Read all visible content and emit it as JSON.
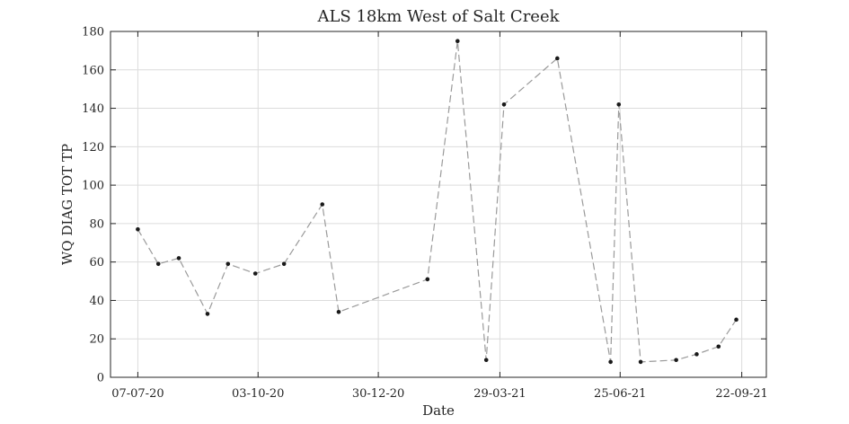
{
  "chart_data": {
    "type": "line",
    "title": "ALS 18km West of Salt Creek",
    "xlabel": "Date",
    "ylabel": "WQ DIAG TOT TP",
    "ylim": [
      0,
      180
    ],
    "yticks": [
      0,
      20,
      40,
      60,
      80,
      100,
      120,
      140,
      160,
      180
    ],
    "xlim": [
      "2020-06-17",
      "2021-10-10"
    ],
    "xticks": [
      {
        "date": "2020-07-07",
        "label": "07-07-20"
      },
      {
        "date": "2020-10-03",
        "label": "03-10-20"
      },
      {
        "date": "2020-12-30",
        "label": "30-12-20"
      },
      {
        "date": "2021-03-29",
        "label": "29-03-21"
      },
      {
        "date": "2021-06-25",
        "label": "25-06-21"
      },
      {
        "date": "2021-09-22",
        "label": "22-09-21"
      }
    ],
    "grid": true,
    "series": [
      {
        "x": [
          "2020-07-07",
          "2020-07-22",
          "2020-08-06",
          "2020-08-27",
          "2020-09-11",
          "2020-10-01",
          "2020-10-22",
          "2020-11-19",
          "2020-12-01",
          "2021-02-04",
          "2021-02-26",
          "2021-03-19",
          "2021-04-01",
          "2021-05-10",
          "2021-06-18",
          "2021-06-24",
          "2021-07-10",
          "2021-08-05",
          "2021-08-20",
          "2021-09-05",
          "2021-09-18"
        ],
        "values": [
          77,
          59,
          62,
          33,
          59,
          54,
          59,
          90,
          34,
          51,
          175,
          9,
          142,
          166,
          8,
          142,
          8,
          9,
          12,
          16,
          30
        ],
        "color": "#9a9a9a",
        "marker_color": "#1a1a1a",
        "line_style": "dashed"
      }
    ]
  }
}
